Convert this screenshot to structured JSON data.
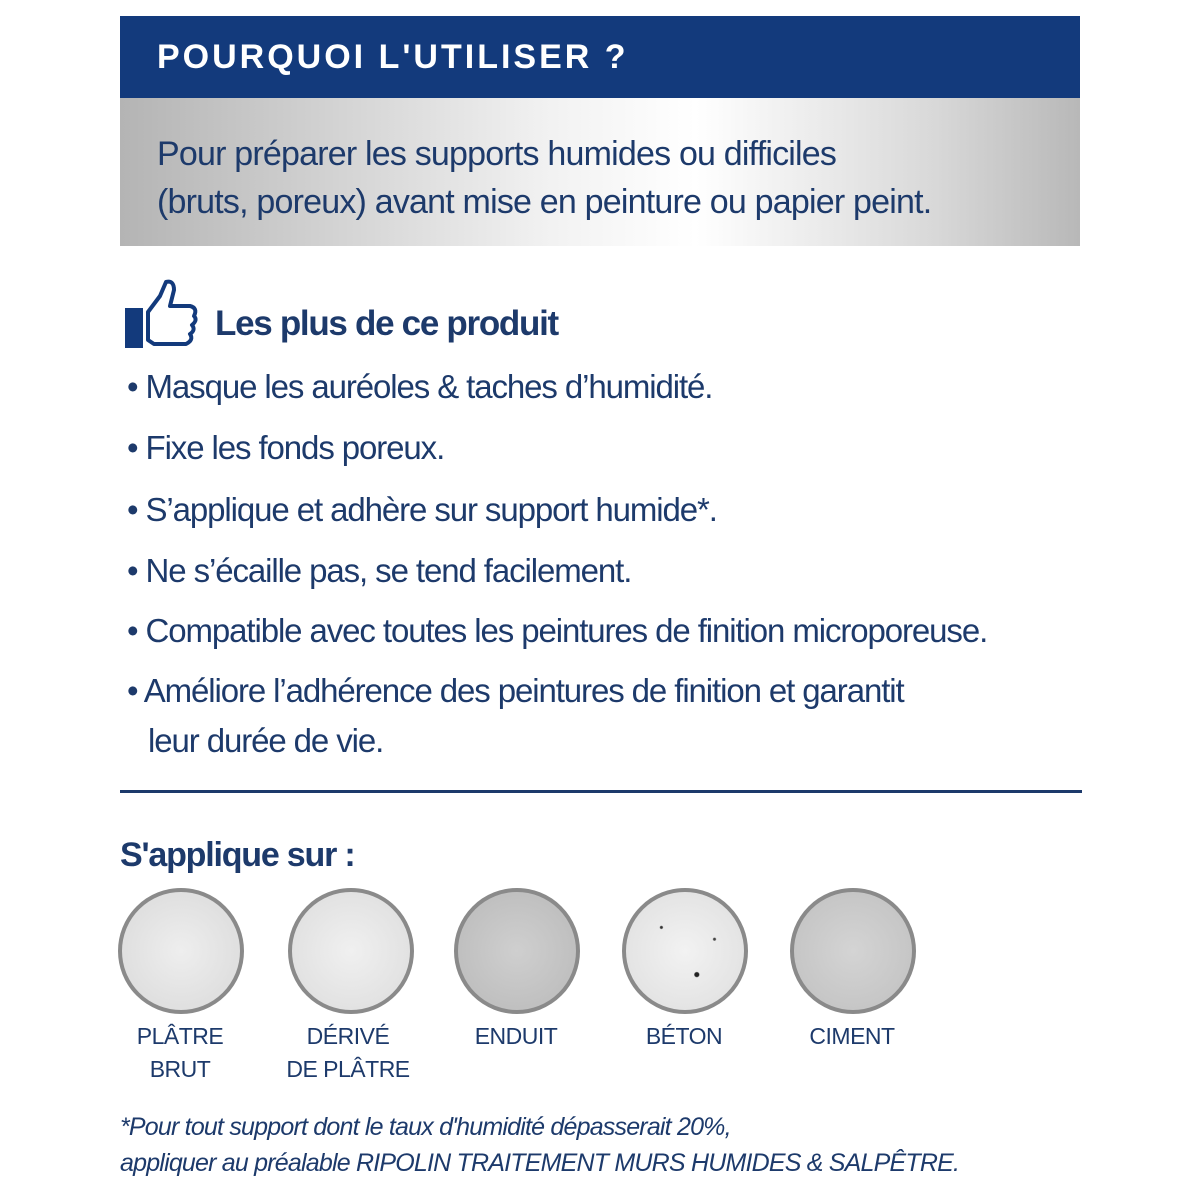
{
  "header": {
    "title": "POURQUOI L'UTILISER ?"
  },
  "intro": {
    "line1": "Pour préparer les supports humides ou difficiles",
    "line2": "(bruts, poreux) avant mise en peinture ou papier peint."
  },
  "benefits": {
    "icon": "thumbs-up-icon",
    "title": "Les plus de ce produit",
    "items": [
      "• Masque les auréoles & taches d’humidité.",
      "• Fixe les fonds poreux.",
      "• S’applique et adhère sur support humide*.",
      "• Ne s’écaille pas, se tend facilement.",
      "• Compatible avec toutes les peintures de finition microporeuse.",
      "• Améliore l’adhérence des peintures de finition et garantit",
      "leur durée de vie."
    ]
  },
  "surfaces": {
    "title": "S'applique sur :",
    "items": [
      {
        "line1": "PLÂTRE",
        "line2": "BRUT"
      },
      {
        "line1": "DÉRIVÉ",
        "line2": "DE PLÂTRE"
      },
      {
        "line1": "ENDUIT",
        "line2": ""
      },
      {
        "line1": "BÉTON",
        "line2": ""
      },
      {
        "line1": "CIMENT",
        "line2": ""
      }
    ]
  },
  "footnote": {
    "line1": "*Pour tout support dont le taux d'humidité dépasserait 20%,",
    "line2": "appliquer au préalable RIPOLIN TRAITEMENT MURS HUMIDES & SALPÊTRE."
  },
  "colors": {
    "navy": "#133a7c",
    "text": "#1d3a6b"
  }
}
